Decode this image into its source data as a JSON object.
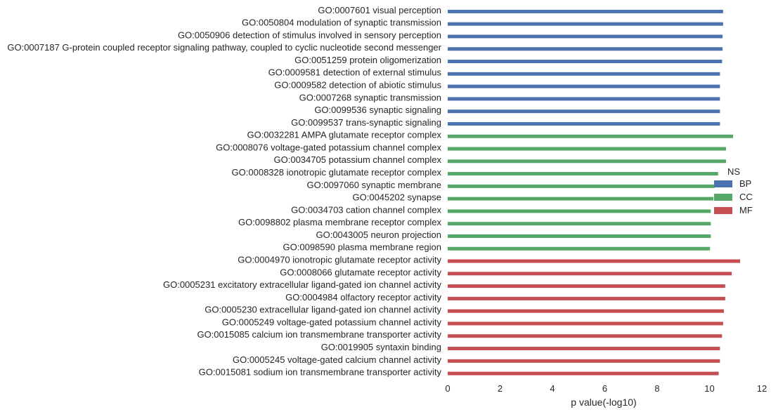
{
  "chart_data": {
    "type": "bar",
    "orientation": "horizontal",
    "xlabel": "p value(-log10)",
    "ylabel": "",
    "xlim": [
      0,
      12
    ],
    "xticks": [
      0,
      2,
      4,
      6,
      8,
      10,
      12
    ],
    "grid": false,
    "legend": {
      "title": "NS",
      "placement": "right",
      "entries": [
        {
          "name": "BP",
          "color": "#4c72b0"
        },
        {
          "name": "CC",
          "color": "#55a868"
        },
        {
          "name": "MF",
          "color": "#c44e52"
        }
      ]
    },
    "categories": [
      {
        "label": "GO:0007601 visual perception",
        "group": "BP",
        "value": 10.52
      },
      {
        "label": "GO:0050804 modulation of synaptic transmission",
        "group": "BP",
        "value": 10.52
      },
      {
        "label": "GO:0050906 detection of stimulus involved in sensory perception",
        "group": "BP",
        "value": 10.5
      },
      {
        "label": "GO:0007187 G-protein coupled receptor signaling pathway, coupled to cyclic nucleotide second messenger",
        "group": "BP",
        "value": 10.5
      },
      {
        "label": "GO:0051259 protein oligomerization",
        "group": "BP",
        "value": 10.48
      },
      {
        "label": "GO:0009581 detection of external stimulus",
        "group": "BP",
        "value": 10.4
      },
      {
        "label": "GO:0009582 detection of abiotic stimulus",
        "group": "BP",
        "value": 10.4
      },
      {
        "label": "GO:0007268 synaptic transmission",
        "group": "BP",
        "value": 10.4
      },
      {
        "label": "GO:0099536 synaptic signaling",
        "group": "BP",
        "value": 10.4
      },
      {
        "label": "GO:0099537 trans-synaptic signaling",
        "group": "BP",
        "value": 10.4
      },
      {
        "label": "GO:0032281 AMPA glutamate receptor complex",
        "group": "CC",
        "value": 10.9
      },
      {
        "label": "GO:0008076 voltage-gated potassium channel complex",
        "group": "CC",
        "value": 10.63
      },
      {
        "label": "GO:0034705 potassium channel complex",
        "group": "CC",
        "value": 10.63
      },
      {
        "label": "GO:0008328 ionotropic glutamate receptor complex",
        "group": "CC",
        "value": 10.33
      },
      {
        "label": "GO:0097060 synaptic membrane",
        "group": "CC",
        "value": 10.2
      },
      {
        "label": "GO:0045202 synapse",
        "group": "CC",
        "value": 10.15
      },
      {
        "label": "GO:0034703 cation channel complex",
        "group": "CC",
        "value": 10.05
      },
      {
        "label": "GO:0098802 plasma membrane receptor complex",
        "group": "CC",
        "value": 10.05
      },
      {
        "label": "GO:0043005 neuron projection",
        "group": "CC",
        "value": 10.05
      },
      {
        "label": "GO:0098590 plasma membrane region",
        "group": "CC",
        "value": 10.02
      },
      {
        "label": "GO:0004970 ionotropic glutamate receptor activity",
        "group": "MF",
        "value": 11.17
      },
      {
        "label": "GO:0008066 glutamate receptor activity",
        "group": "MF",
        "value": 10.85
      },
      {
        "label": "GO:0005231 excitatory extracellular ligand-gated ion channel activity",
        "group": "MF",
        "value": 10.6
      },
      {
        "label": "GO:0004984 olfactory receptor activity",
        "group": "MF",
        "value": 10.6
      },
      {
        "label": "GO:0005230 extracellular ligand-gated ion channel activity",
        "group": "MF",
        "value": 10.55
      },
      {
        "label": "GO:0005249 voltage-gated potassium channel activity",
        "group": "MF",
        "value": 10.52
      },
      {
        "label": "GO:0015085 calcium ion transmembrane transporter activity",
        "group": "MF",
        "value": 10.48
      },
      {
        "label": "GO:0019905 syntaxin binding",
        "group": "MF",
        "value": 10.4
      },
      {
        "label": "GO:0005245 voltage-gated calcium channel activity",
        "group": "MF",
        "value": 10.4
      },
      {
        "label": "GO:0015081 sodium ion transmembrane transporter activity",
        "group": "MF",
        "value": 10.35
      }
    ]
  }
}
